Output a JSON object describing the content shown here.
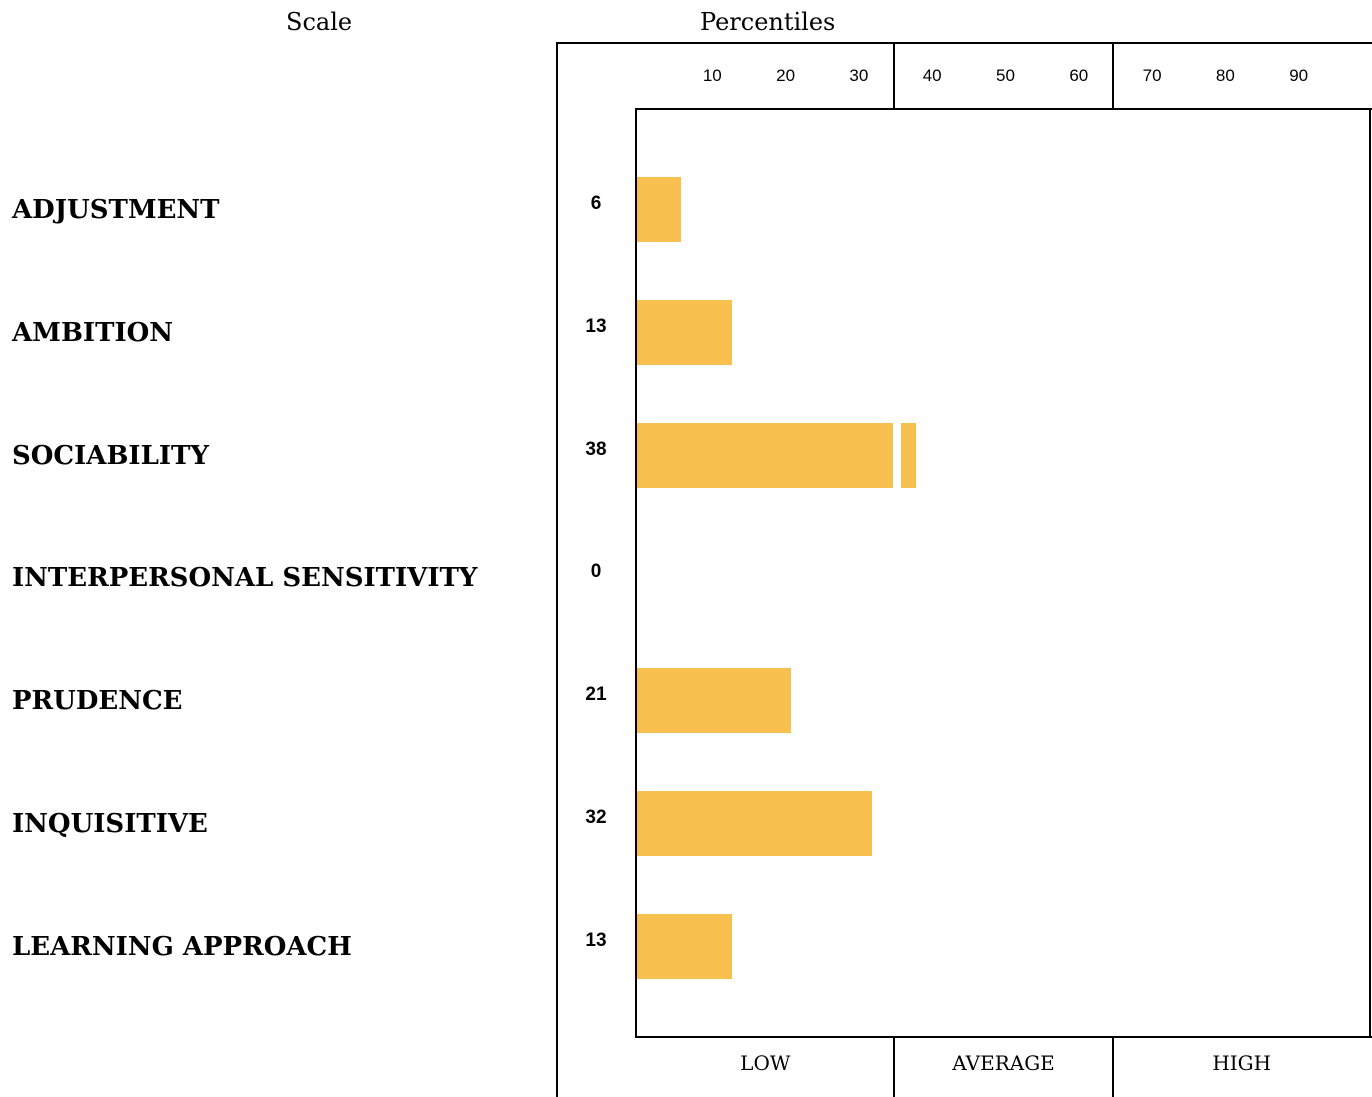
{
  "header": {
    "scale": "Scale",
    "percentiles": "Percentiles"
  },
  "colors": {
    "bar": "#F8C04E",
    "axis": "#000000"
  },
  "chart_data": {
    "type": "bar",
    "orientation": "horizontal",
    "categories": [
      "ADJUSTMENT",
      "AMBITION",
      "SOCIABILITY",
      "INTERPERSONAL SENSITIVITY",
      "PRUDENCE",
      "INQUISITIVE",
      "LEARNING APPROACH"
    ],
    "values": [
      6,
      13,
      38,
      0,
      21,
      32,
      13
    ],
    "value_labels": [
      "6",
      "13",
      "38",
      "0",
      "21",
      "32",
      "13"
    ],
    "x_ticks": [
      "10",
      "20",
      "30",
      "40",
      "50",
      "60",
      "70",
      "80",
      "90"
    ],
    "x_tick_values": [
      10,
      20,
      30,
      40,
      50,
      60,
      70,
      80,
      90
    ],
    "xlim": [
      0,
      100
    ],
    "bands": [
      {
        "label": "LOW",
        "from": 0,
        "to": 35
      },
      {
        "label": "AVERAGE",
        "from": 35,
        "to": 65
      },
      {
        "label": "HIGH",
        "from": 65,
        "to": 100
      }
    ]
  }
}
